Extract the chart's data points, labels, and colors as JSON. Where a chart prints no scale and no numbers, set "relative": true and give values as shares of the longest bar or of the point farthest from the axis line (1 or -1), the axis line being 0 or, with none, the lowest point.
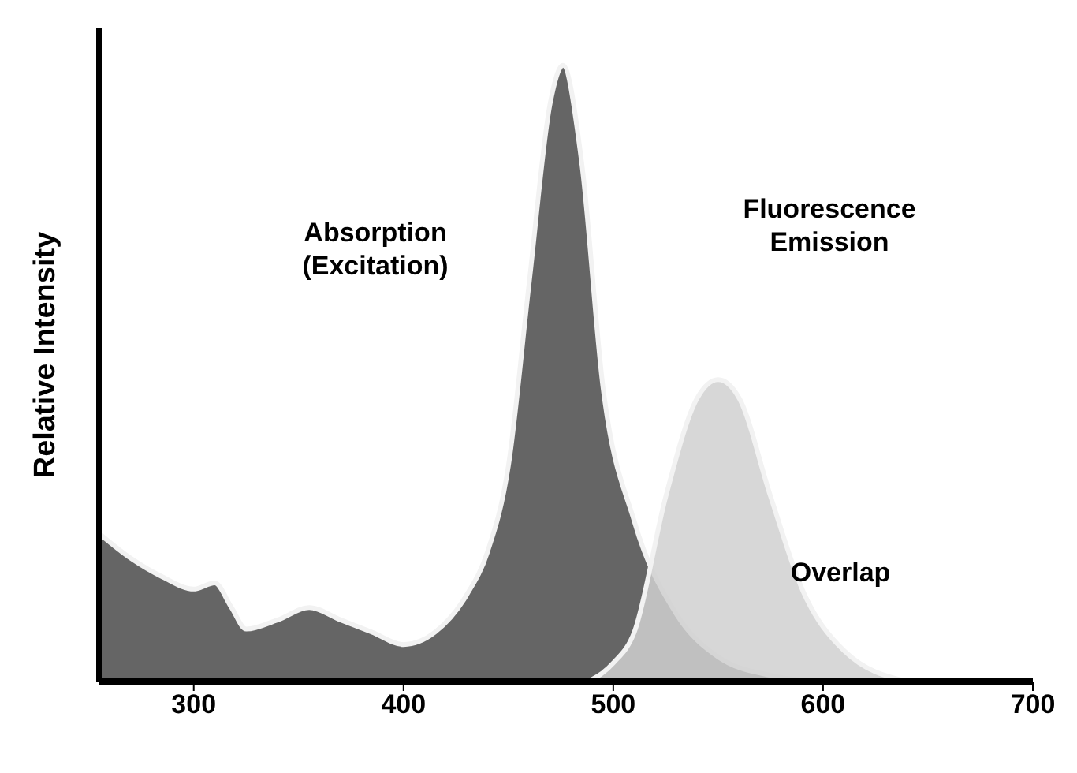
{
  "chart_data": {
    "type": "area",
    "relative": true,
    "ylabel": "Relative Intensity",
    "xlim": [
      255,
      700
    ],
    "xticks": [
      300,
      400,
      500,
      600,
      700
    ],
    "series": [
      {
        "name": null,
        "color": "#4a4a4a",
        "x": [
          255,
          270,
          285,
          300,
          310,
          318,
          325,
          340,
          355,
          370,
          385,
          400,
          415,
          430,
          440,
          450,
          460,
          470,
          476,
          485,
          495,
          510,
          530,
          550,
          575,
          600
        ],
        "values": [
          0.24,
          0.2,
          0.17,
          0.15,
          0.16,
          0.12,
          0.085,
          0.1,
          0.12,
          0.1,
          0.08,
          0.06,
          0.08,
          0.14,
          0.21,
          0.35,
          0.65,
          0.94,
          1,
          0.84,
          0.48,
          0.26,
          0.11,
          0.04,
          0.01,
          0
        ]
      },
      {
        "name": null,
        "color": "#d0d0d0",
        "x": [
          488,
          500,
          510,
          525,
          540,
          550,
          560,
          575,
          590,
          610,
          640
        ],
        "values": [
          0,
          0.03,
          0.08,
          0.3,
          0.46,
          0.49,
          0.46,
          0.3,
          0.15,
          0.05,
          0
        ]
      }
    ],
    "annotations": [
      "Absorption\n(Excitation)",
      "Fluorescence\nEmission",
      "Overlap"
    ]
  }
}
